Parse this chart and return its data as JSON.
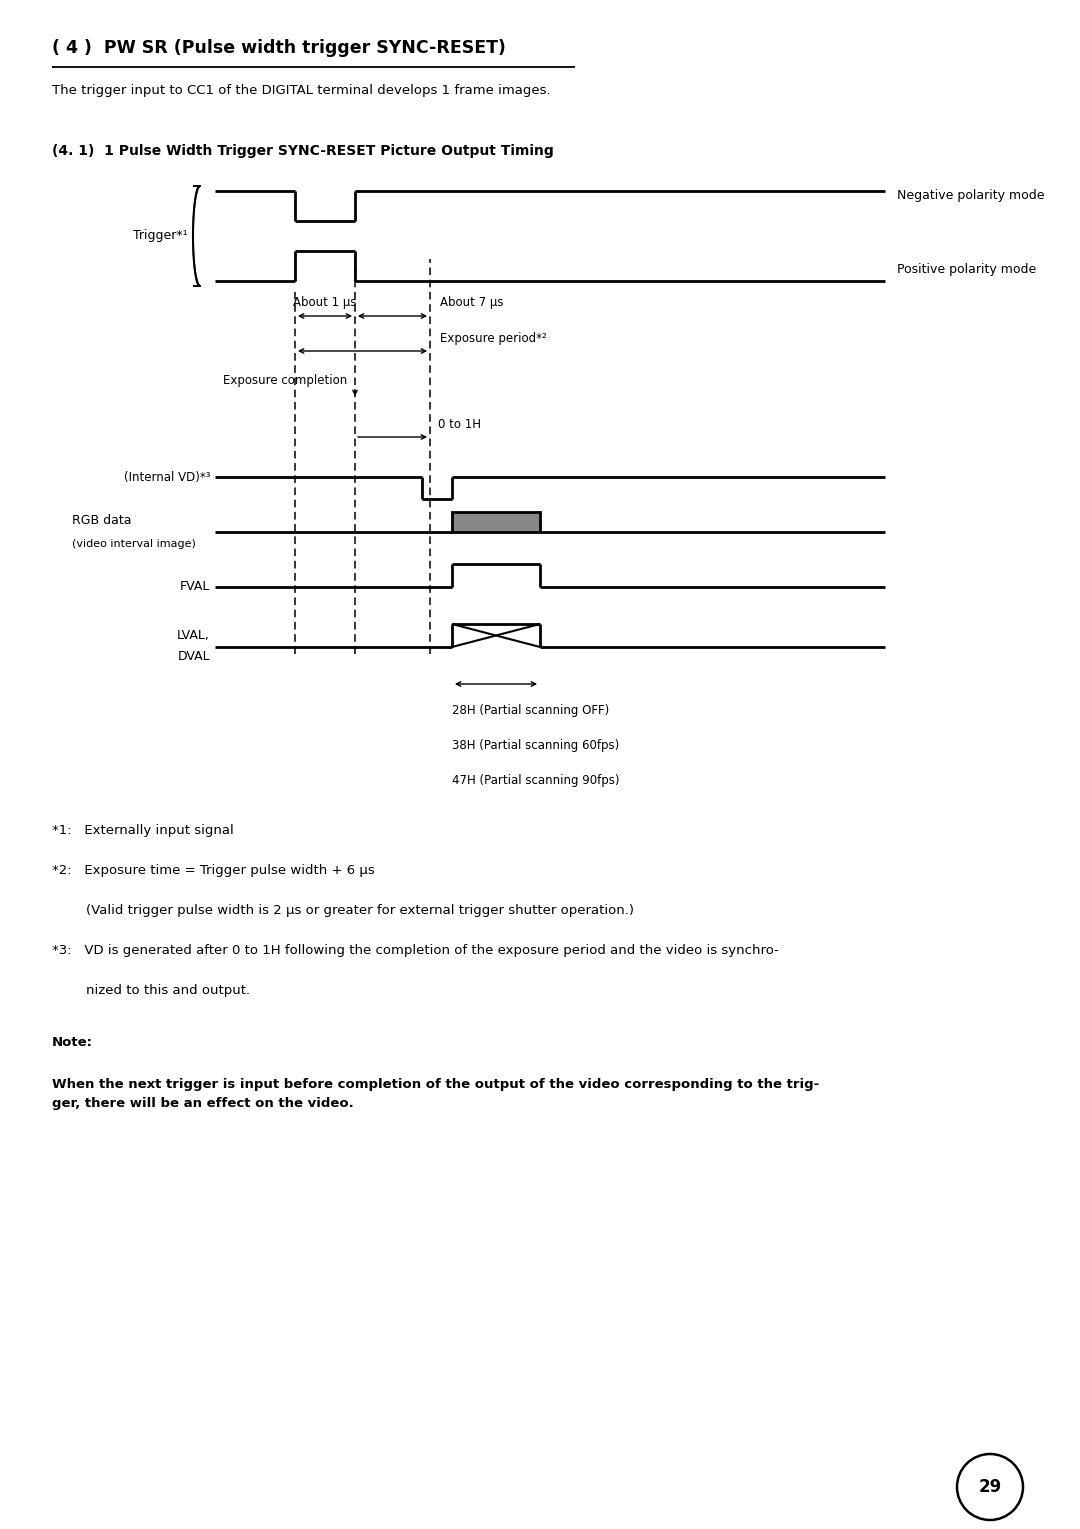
{
  "title": "( 4 )  PW SR (Pulse width trigger SYNC-RESET)",
  "subtitle": "The trigger input to CC1 of the DIGITAL terminal develops 1 frame images.",
  "section_title": "(4. 1)  1 Pulse Width Trigger SYNC-RESET Picture Output Timing",
  "bg_color": "#ffffff",
  "signal_color": "#000000",
  "gray_fill": "#888888",
  "page_number": "29"
}
